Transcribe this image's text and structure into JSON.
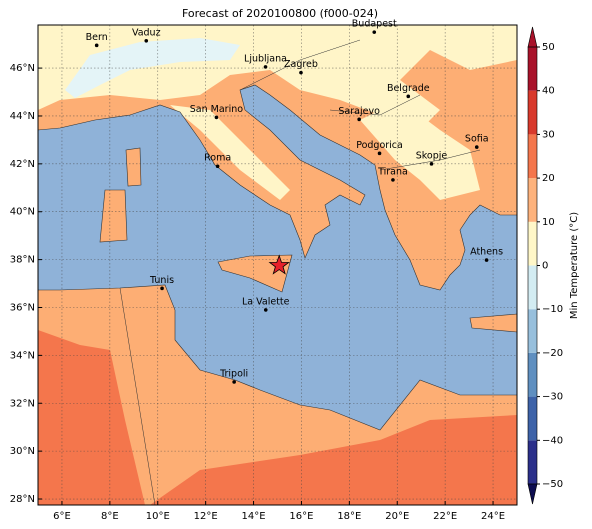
{
  "title": "Forecast of 2020100800 (f000-024)",
  "map": {
    "lonlim": [
      5,
      25
    ],
    "latlim": [
      27.75,
      47.8
    ],
    "lonticks": [
      {
        "value": 6,
        "label": "6°E"
      },
      {
        "value": 8,
        "label": "8°E"
      },
      {
        "value": 10,
        "label": "10°E"
      },
      {
        "value": 12,
        "label": "12°E"
      },
      {
        "value": 14,
        "label": "14°E"
      },
      {
        "value": 16,
        "label": "16°E"
      },
      {
        "value": 18,
        "label": "18°E"
      },
      {
        "value": 20,
        "label": "20°E"
      },
      {
        "value": 22,
        "label": "22°E"
      },
      {
        "value": 24,
        "label": "24°E"
      }
    ],
    "latticks": [
      {
        "value": 28,
        "label": "28°N"
      },
      {
        "value": 30,
        "label": "30°N"
      },
      {
        "value": 32,
        "label": "32°N"
      },
      {
        "value": 34,
        "label": "34°N"
      },
      {
        "value": 36,
        "label": "36°N"
      },
      {
        "value": 38,
        "label": "38°N"
      },
      {
        "value": 40,
        "label": "40°N"
      },
      {
        "value": 42,
        "label": "42°N"
      },
      {
        "value": 44,
        "label": "44°N"
      },
      {
        "value": 46,
        "label": "46°N"
      }
    ],
    "grid": true,
    "cities": [
      {
        "name": "Bern",
        "lon": 7.45,
        "lat": 46.95
      },
      {
        "name": "Vaduz",
        "lon": 9.52,
        "lat": 47.14
      },
      {
        "name": "Budapest",
        "lon": 19.04,
        "lat": 47.5
      },
      {
        "name": "Ljubljana",
        "lon": 14.5,
        "lat": 46.05
      },
      {
        "name": "Zagreb",
        "lon": 15.98,
        "lat": 45.81
      },
      {
        "name": "Belgrade",
        "lon": 20.46,
        "lat": 44.82
      },
      {
        "name": "Sarajevo",
        "lon": 18.41,
        "lat": 43.86
      },
      {
        "name": "San Marino",
        "lon": 12.45,
        "lat": 43.94
      },
      {
        "name": "Podgorica",
        "lon": 19.26,
        "lat": 42.44
      },
      {
        "name": "Skopje",
        "lon": 21.43,
        "lat": 42.0
      },
      {
        "name": "Sofia",
        "lon": 23.32,
        "lat": 42.7
      },
      {
        "name": "Roma",
        "lon": 12.5,
        "lat": 41.9
      },
      {
        "name": "Tirana",
        "lon": 19.82,
        "lat": 41.33
      },
      {
        "name": "Athens",
        "lon": 23.73,
        "lat": 37.98
      },
      {
        "name": "Tunis",
        "lon": 10.18,
        "lat": 36.8
      },
      {
        "name": "La Valette",
        "lon": 14.51,
        "lat": 35.9
      },
      {
        "name": "Tripoli",
        "lon": 13.19,
        "lat": 32.89
      }
    ],
    "star": {
      "lon": 15.07,
      "lat": 37.75,
      "color": "#e8202a"
    }
  },
  "colorbar": {
    "label": "Min Temperature (°C)",
    "lim": [
      -50,
      50
    ],
    "ticks": [
      {
        "value": -50,
        "label": "−50"
      },
      {
        "value": -40,
        "label": "−40"
      },
      {
        "value": -30,
        "label": "−30"
      },
      {
        "value": -20,
        "label": "−20"
      },
      {
        "value": -10,
        "label": "−10"
      },
      0,
      10,
      20,
      30,
      40,
      50
    ],
    "colors": [
      "#2b2f8a",
      "#3d62a8",
      "#5f8fc0",
      "#97bfdc",
      "#d3ecf2",
      "#fff7c8",
      "#fdb27c",
      "#f4764c",
      "#d8392c",
      "#a8122a"
    ]
  }
}
